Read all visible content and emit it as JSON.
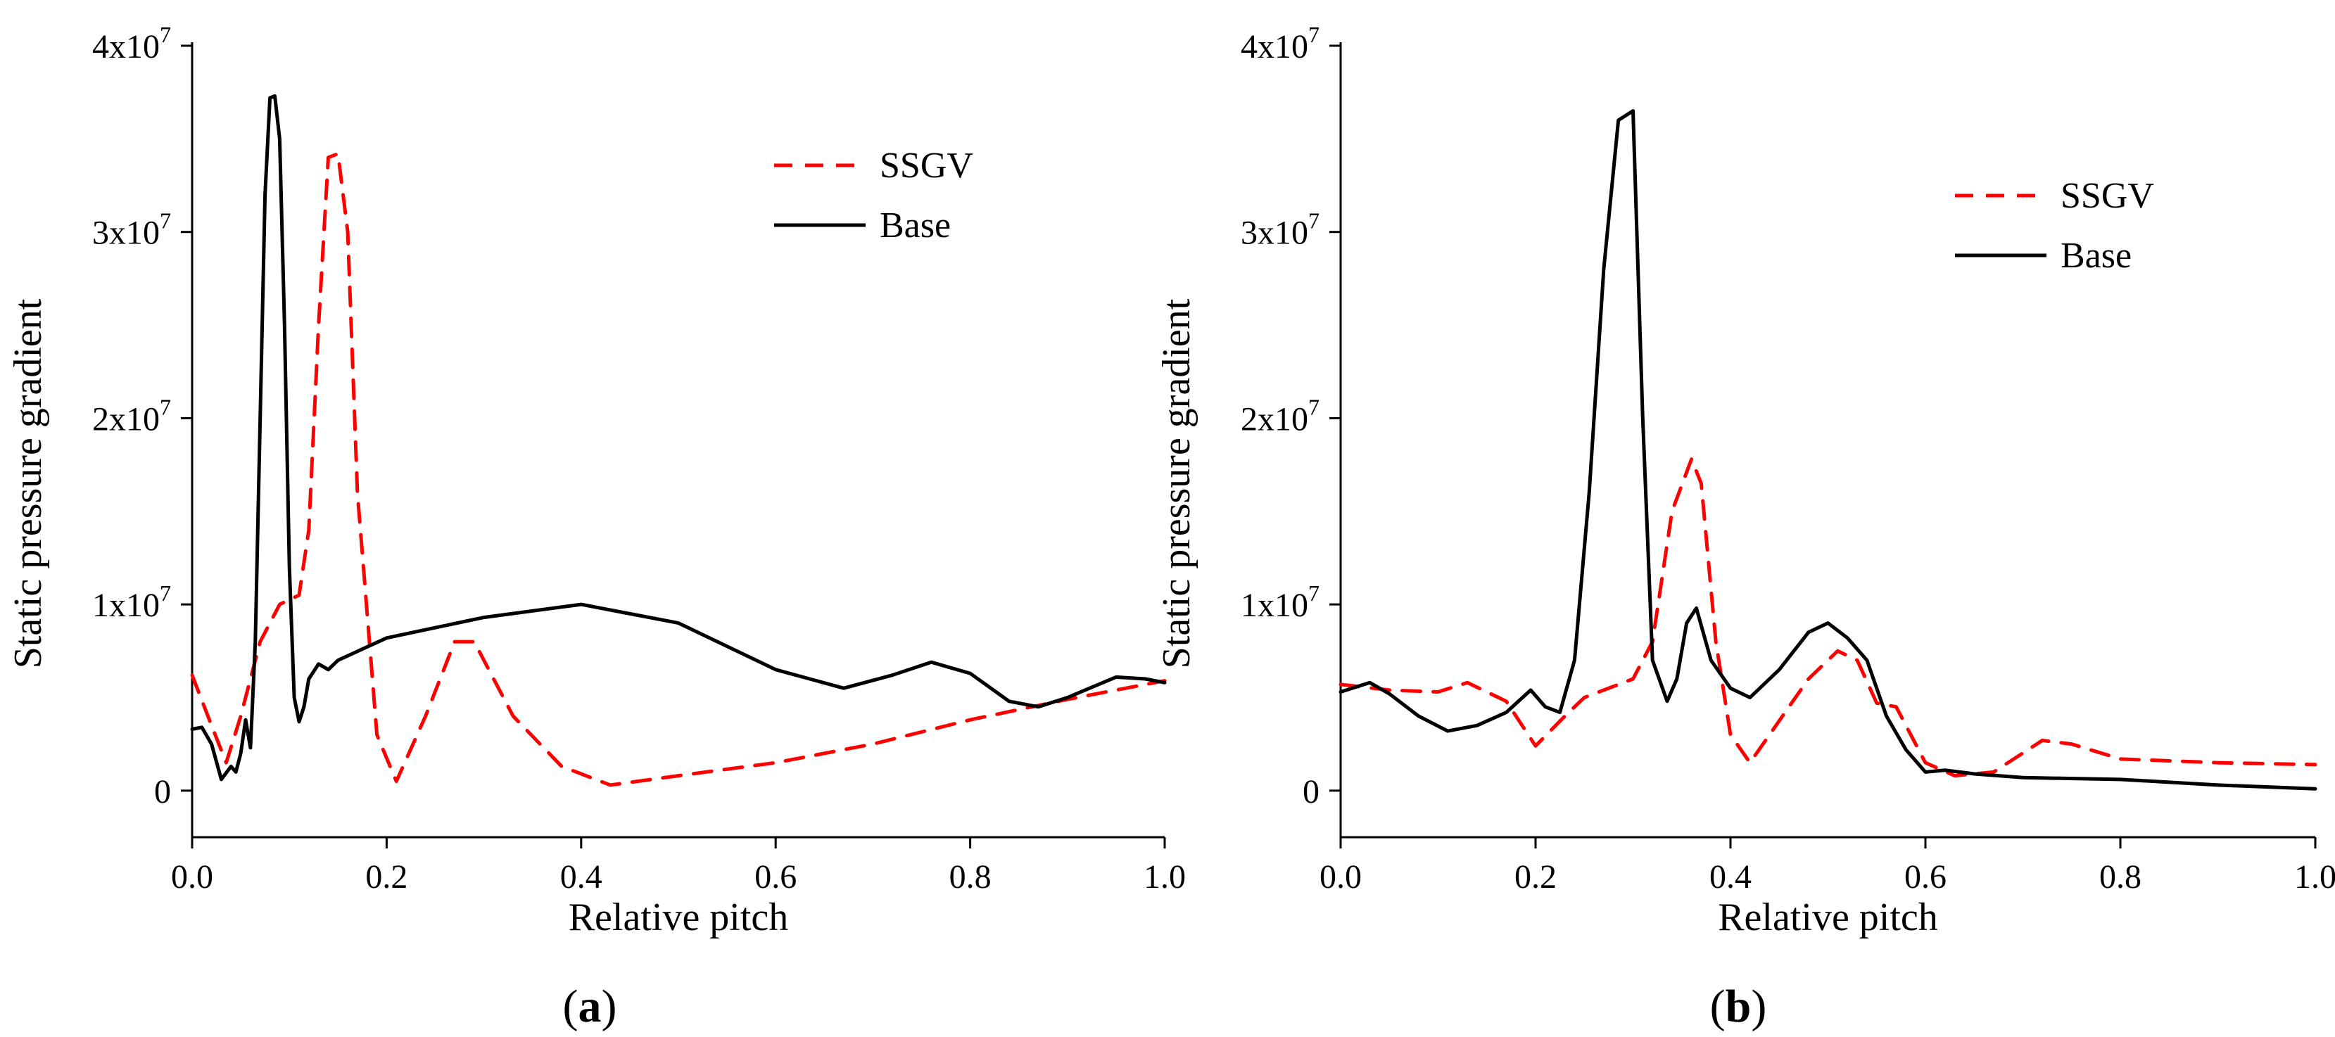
{
  "chart_data": [
    {
      "type": "line",
      "panel_label": "(a)",
      "panel_label_parts": [
        "(",
        "a",
        ")"
      ],
      "xlabel": "Relative pitch",
      "ylabel": "Static pressure gradient",
      "xlim": [
        0,
        1.0
      ],
      "ylim": [
        -2500000.0,
        40000000.0
      ],
      "xticks": [
        "0.0",
        "0.2",
        "0.4",
        "0.6",
        "0.8",
        "1.0"
      ],
      "xtick_values": [
        0,
        0.2,
        0.4,
        0.6,
        0.8,
        1.0
      ],
      "yticks": [
        {
          "value": 0,
          "mantissa": "0",
          "exp": ""
        },
        {
          "value": 10000000,
          "mantissa": "1x10",
          "exp": "7"
        },
        {
          "value": 20000000,
          "mantissa": "2x10",
          "exp": "7"
        },
        {
          "value": 30000000,
          "mantissa": "3x10",
          "exp": "7"
        },
        {
          "value": 40000000,
          "mantissa": "4x10",
          "exp": "7"
        }
      ],
      "legend_position": "top-right",
      "series": [
        {
          "name": "SSGV",
          "color": "#ff0000",
          "dash": "dashed",
          "x": [
            0.0,
            0.02,
            0.035,
            0.05,
            0.07,
            0.09,
            0.11,
            0.12,
            0.13,
            0.14,
            0.15,
            0.16,
            0.17,
            0.19,
            0.21,
            0.24,
            0.27,
            0.29,
            0.33,
            0.38,
            0.43,
            0.5,
            0.6,
            0.7,
            0.8,
            0.9,
            1.0
          ],
          "y": [
            6200000,
            3500000,
            1500000,
            4000000,
            8000000,
            10000000,
            10500000,
            14000000,
            25000000,
            34000000,
            34200000,
            30000000,
            16000000,
            3000000,
            500000,
            4000000,
            8000000,
            8000000,
            4000000,
            1300000,
            300000,
            800000,
            1500000,
            2500000,
            3800000,
            4900000,
            5900000
          ]
        },
        {
          "name": "Base",
          "color": "#000000",
          "dash": "solid",
          "x": [
            0.0,
            0.01,
            0.02,
            0.03,
            0.04,
            0.045,
            0.05,
            0.055,
            0.06,
            0.065,
            0.07,
            0.075,
            0.08,
            0.085,
            0.09,
            0.095,
            0.1,
            0.105,
            0.11,
            0.115,
            0.12,
            0.13,
            0.14,
            0.15,
            0.2,
            0.3,
            0.4,
            0.5,
            0.6,
            0.67,
            0.72,
            0.76,
            0.8,
            0.84,
            0.87,
            0.9,
            0.95,
            0.98,
            1.0
          ],
          "y": [
            3300000,
            3400000,
            2500000,
            600000,
            1300000,
            1000000,
            2000000,
            3800000,
            2300000,
            8000000,
            20000000,
            32000000,
            37200000,
            37300000,
            35000000,
            25000000,
            12000000,
            5000000,
            3700000,
            4500000,
            6000000,
            6800000,
            6500000,
            7000000,
            8200000,
            9300000,
            10000000,
            9000000,
            6500000,
            5500000,
            6200000,
            6900000,
            6300000,
            4800000,
            4500000,
            5000000,
            6100000,
            6000000,
            5800000
          ]
        }
      ]
    },
    {
      "type": "line",
      "panel_label": "(b)",
      "panel_label_parts": [
        "(",
        "b",
        ")"
      ],
      "xlabel": "Relative pitch",
      "ylabel": "Static pressure gradient",
      "xlim": [
        0,
        1.0
      ],
      "ylim": [
        -2500000.0,
        40000000.0
      ],
      "xticks": [
        "0.0",
        "0.2",
        "0.4",
        "0.6",
        "0.8",
        "1.0"
      ],
      "xtick_values": [
        0,
        0.2,
        0.4,
        0.6,
        0.8,
        1.0
      ],
      "yticks": [
        {
          "value": 0,
          "mantissa": "0",
          "exp": ""
        },
        {
          "value": 10000000,
          "mantissa": "1x10",
          "exp": "7"
        },
        {
          "value": 20000000,
          "mantissa": "2x10",
          "exp": "7"
        },
        {
          "value": 30000000,
          "mantissa": "3x10",
          "exp": "7"
        },
        {
          "value": 40000000,
          "mantissa": "4x10",
          "exp": "7"
        }
      ],
      "legend_position": "top-right",
      "series": [
        {
          "name": "SSGV",
          "color": "#ff0000",
          "dash": "dashed",
          "x": [
            0.0,
            0.05,
            0.1,
            0.13,
            0.17,
            0.2,
            0.23,
            0.25,
            0.3,
            0.32,
            0.34,
            0.36,
            0.37,
            0.385,
            0.4,
            0.42,
            0.44,
            0.48,
            0.51,
            0.53,
            0.55,
            0.57,
            0.6,
            0.63,
            0.67,
            0.72,
            0.75,
            0.8,
            0.9,
            1.0
          ],
          "y": [
            5700000,
            5400000,
            5300000,
            5800000,
            4800000,
            2400000,
            4000000,
            5000000,
            6000000,
            8000000,
            15000000,
            17800000,
            16500000,
            8000000,
            3000000,
            1500000,
            3000000,
            6000000,
            7500000,
            7000000,
            4700000,
            4500000,
            1500000,
            800000,
            1000000,
            2700000,
            2500000,
            1700000,
            1500000,
            1400000
          ]
        },
        {
          "name": "Base",
          "color": "#000000",
          "dash": "solid",
          "x": [
            0.0,
            0.03,
            0.05,
            0.08,
            0.11,
            0.14,
            0.17,
            0.195,
            0.21,
            0.225,
            0.24,
            0.255,
            0.27,
            0.285,
            0.3,
            0.31,
            0.32,
            0.335,
            0.345,
            0.355,
            0.365,
            0.38,
            0.4,
            0.42,
            0.45,
            0.48,
            0.5,
            0.52,
            0.54,
            0.56,
            0.58,
            0.6,
            0.62,
            0.65,
            0.7,
            0.8,
            0.9,
            1.0
          ],
          "y": [
            5300000,
            5800000,
            5200000,
            4000000,
            3200000,
            3500000,
            4200000,
            5400000,
            4500000,
            4200000,
            7000000,
            16000000,
            28000000,
            36000000,
            36500000,
            20000000,
            7000000,
            4800000,
            6000000,
            9000000,
            9800000,
            7000000,
            5500000,
            5000000,
            6500000,
            8500000,
            9000000,
            8200000,
            7000000,
            4000000,
            2200000,
            1000000,
            1100000,
            900000,
            700000,
            600000,
            300000,
            100000
          ]
        }
      ]
    }
  ]
}
